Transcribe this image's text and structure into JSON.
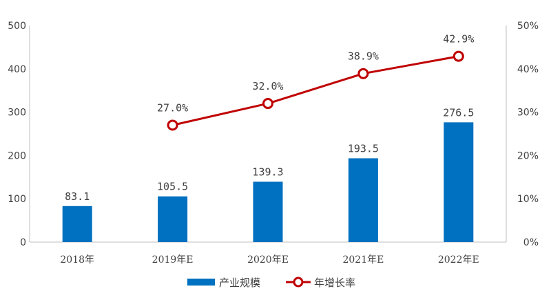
{
  "chart_data": {
    "type": "bar",
    "categories": [
      "2018年",
      "2019年E",
      "2020年E",
      "2021年E",
      "2022年E"
    ],
    "series": [
      {
        "name": "产业规模",
        "type": "bar",
        "axis": "left",
        "values": [
          83.1,
          105.5,
          139.3,
          193.5,
          276.5
        ],
        "labels": [
          "83.1",
          "105.5",
          "139.3",
          "193.5",
          "276.5"
        ],
        "color": "#0070c0"
      },
      {
        "name": "年增长率",
        "type": "line",
        "axis": "right",
        "values": [
          null,
          27.0,
          32.0,
          38.9,
          42.9
        ],
        "labels": [
          "",
          "27.0%",
          "32.0%",
          "38.9%",
          "42.9%"
        ],
        "color": "#c00000"
      }
    ],
    "left_axis": {
      "ylim": [
        0,
        500
      ],
      "ticks": [
        "0",
        "100",
        "200",
        "300",
        "400",
        "500"
      ]
    },
    "right_axis": {
      "ylim": [
        0,
        50
      ],
      "ticks": [
        "0%",
        "10%",
        "20%",
        "30%",
        "40%",
        "50%"
      ]
    },
    "grid": false,
    "legend_position": "bottom"
  }
}
